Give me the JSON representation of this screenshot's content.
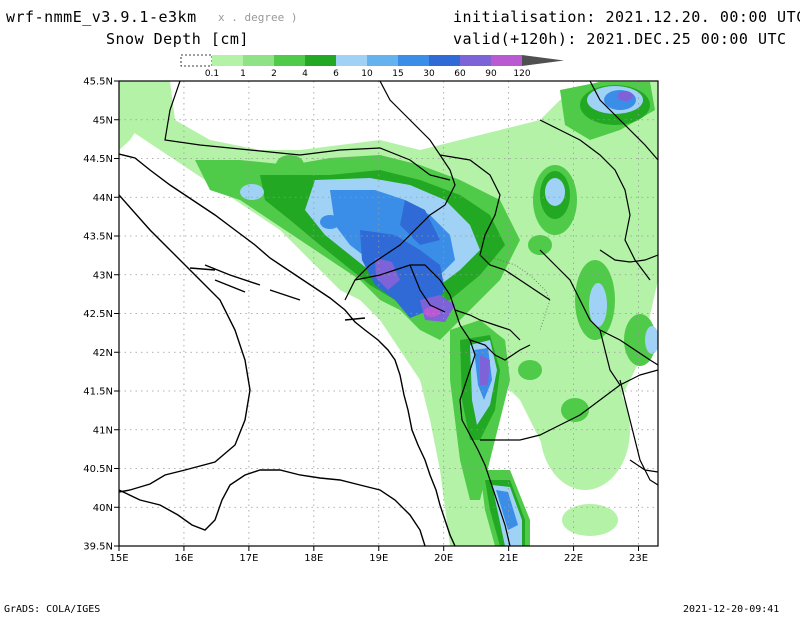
{
  "header": {
    "model": "wrf-nmmE_v3.9.1-e3km",
    "units_note": "x . degree )",
    "variable": "Snow Depth [cm]",
    "init": "initialisation: 2021.12.20. 00:00 UTC",
    "valid": "valid(+120h): 2021.DEC.25 00:00 UTC"
  },
  "legend": {
    "levels": [
      "0.1",
      "1",
      "2",
      "4",
      "6",
      "10",
      "15",
      "30",
      "60",
      "90",
      "120"
    ],
    "colors": [
      "#ffffff",
      "#b4f2a8",
      "#8fe386",
      "#4fca49",
      "#22a822",
      "#a0d2f6",
      "#64b3ef",
      "#3a8ee8",
      "#2f6ad6",
      "#7e63d8",
      "#b95ad2",
      "#505050"
    ]
  },
  "map": {
    "lat_labels": [
      "45.5N",
      "45N",
      "44.5N",
      "44N",
      "43.5N",
      "43N",
      "42.5N",
      "42N",
      "41.5N",
      "41N",
      "40.5N",
      "40N",
      "39.5N"
    ],
    "lon_labels": [
      "15E",
      "16E",
      "17E",
      "18E",
      "19E",
      "20E",
      "21E",
      "22E",
      "23E"
    ],
    "lon_range": [
      15,
      23.3
    ],
    "lat_range": [
      39.5,
      45.5
    ]
  },
  "footer": {
    "left": "GrADS: COLA/IGES",
    "right": "2021-12-20-09:41"
  }
}
